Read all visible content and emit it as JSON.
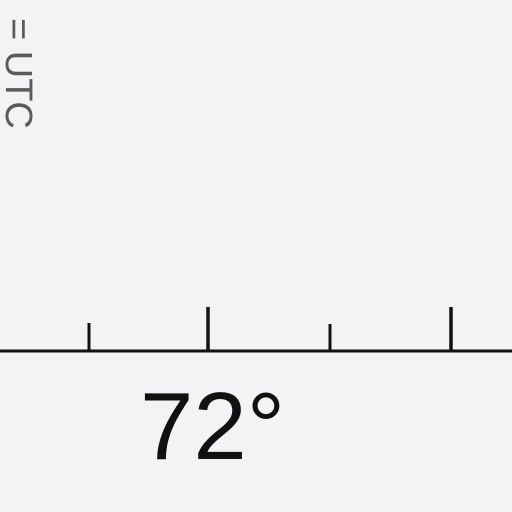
{
  "zone_label": "= UTC",
  "meridian_label": "72°",
  "colors": {
    "background": "#f3f3f6",
    "zone_text": "#5b5b5b",
    "scale_ink": "#111111"
  }
}
